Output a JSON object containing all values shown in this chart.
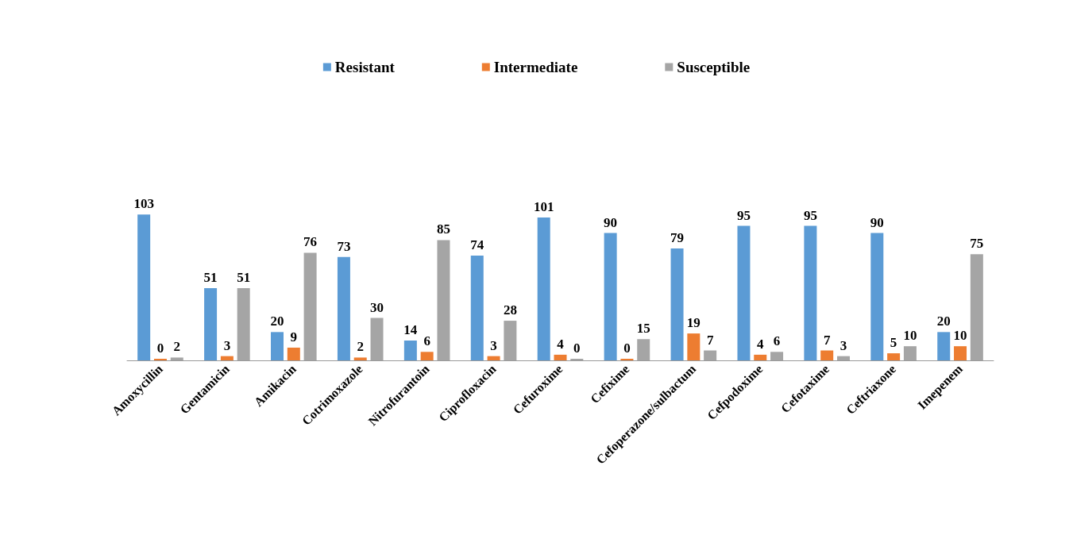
{
  "chart_data": {
    "type": "bar",
    "categories": [
      "Amoxycillin",
      "Gentamicin",
      "Amikacin",
      "Cotrimoxazole",
      "Nitrofurantoin",
      "Ciprofloxacin",
      "Cefuroxime",
      "Cefixime",
      "Cefoperazone/sulbactum",
      "Cefpodoxime",
      "Cefotaxime",
      "Ceftriaxone",
      "Imepenem"
    ],
    "series": [
      {
        "name": "Resistant",
        "color": "#5b9bd5",
        "values": [
          103,
          51,
          20,
          73,
          14,
          74,
          101,
          90,
          79,
          95,
          95,
          90,
          20
        ]
      },
      {
        "name": "Intermediate",
        "color": "#ed7d31",
        "values": [
          0,
          3,
          9,
          2,
          6,
          3,
          4,
          0,
          19,
          4,
          7,
          5,
          10
        ]
      },
      {
        "name": "Susceptible",
        "color": "#a5a5a5",
        "values": [
          2,
          51,
          76,
          30,
          85,
          28,
          0,
          15,
          7,
          6,
          3,
          10,
          75
        ]
      }
    ],
    "data_labels": true,
    "legend": "top"
  }
}
